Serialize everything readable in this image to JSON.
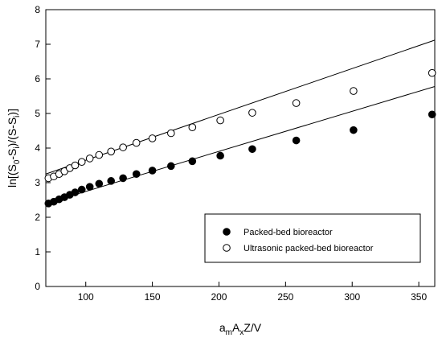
{
  "chart_data": {
    "type": "scatter",
    "xlabel": {
      "a": "a",
      "m": "m",
      "A": "A",
      "x": "x",
      "rest": "Z/V"
    },
    "ylabel": {
      "p1": "ln[(S",
      "s0": "0",
      "p2": "-S",
      "si": "i",
      "p3": ")/(S-S",
      "si2": "i",
      "p4": ")]"
    },
    "xlim": [
      70,
      362
    ],
    "ylim": [
      0,
      8
    ],
    "x_ticks": [
      "100",
      "150",
      "200",
      "250",
      "300",
      "350"
    ],
    "x_tick_values": [
      100,
      150,
      200,
      250,
      300,
      350
    ],
    "y_ticks": [
      "0",
      "1",
      "2",
      "3",
      "4",
      "5",
      "6",
      "7",
      "8"
    ],
    "y_tick_values": [
      0,
      1,
      2,
      3,
      4,
      5,
      6,
      7,
      8
    ],
    "grid": false,
    "legend_position": "bottom-right",
    "series": [
      {
        "name": "Packed-bed bioreactor",
        "marker": "filled-circle",
        "color": "#000000",
        "x": [
          72,
          76,
          80,
          84,
          88,
          92,
          97,
          103,
          110,
          119,
          128,
          138,
          150,
          164,
          180,
          201,
          225,
          258,
          301,
          360
        ],
        "y": [
          2.4,
          2.45,
          2.52,
          2.58,
          2.65,
          2.72,
          2.8,
          2.88,
          2.97,
          3.05,
          3.13,
          3.25,
          3.35,
          3.48,
          3.62,
          3.78,
          3.97,
          4.22,
          4.52,
          4.97
        ],
        "fit_line": {
          "x": [
            70,
            362
          ],
          "y": [
            2.4,
            5.78
          ]
        }
      },
      {
        "name": "Ultrasonic packed-bed bioreactor",
        "marker": "open-circle",
        "color": "#000000",
        "x": [
          72,
          76,
          80,
          84,
          88,
          92,
          97,
          103,
          110,
          119,
          128,
          138,
          150,
          164,
          180,
          201,
          225,
          258,
          301,
          360
        ],
        "y": [
          3.13,
          3.18,
          3.25,
          3.33,
          3.42,
          3.5,
          3.6,
          3.7,
          3.8,
          3.9,
          4.02,
          4.15,
          4.28,
          4.43,
          4.6,
          4.8,
          5.02,
          5.3,
          5.65,
          6.17
        ],
        "fit_line": {
          "x": [
            70,
            362
          ],
          "y": [
            3.25,
            7.12
          ]
        }
      }
    ]
  }
}
